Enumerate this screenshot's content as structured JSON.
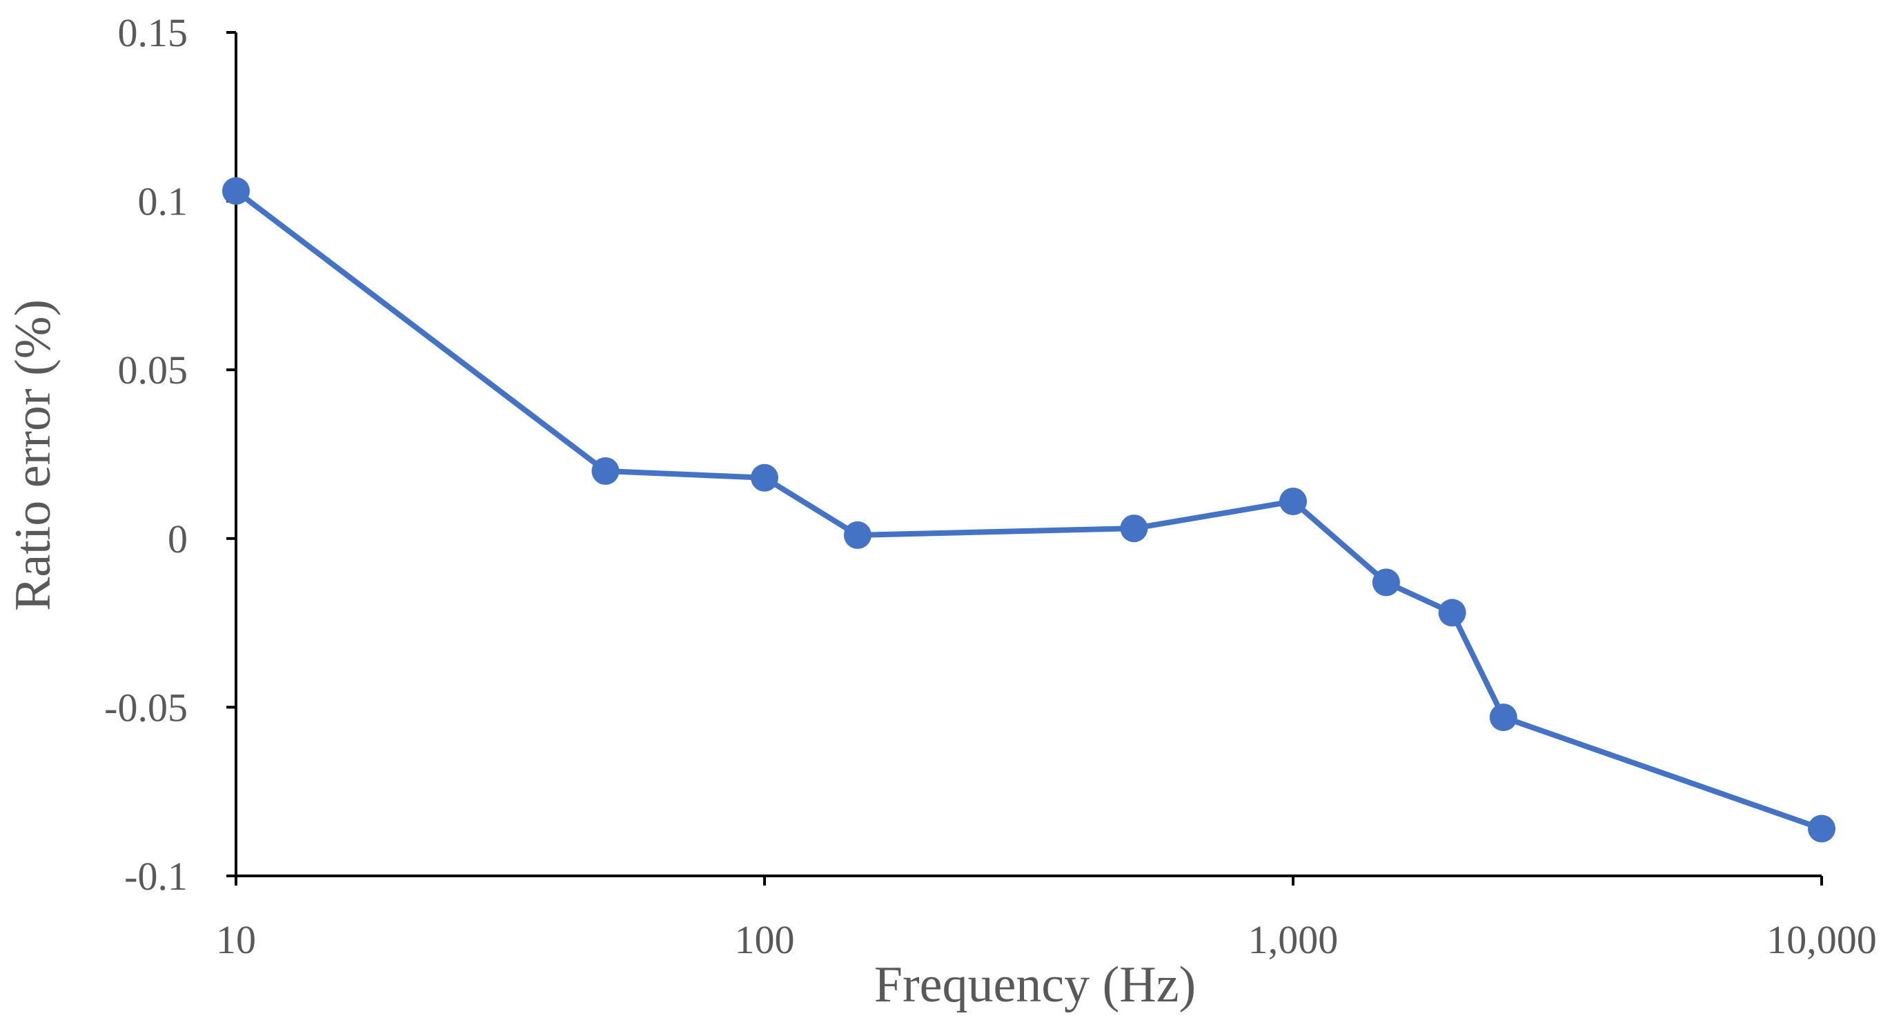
{
  "chart_data": {
    "type": "line",
    "title": "",
    "xlabel": "Frequency (Hz)",
    "ylabel": "Ratio error (%)",
    "xscale": "log",
    "xlim": [
      10,
      10000
    ],
    "ylim": [
      -0.1,
      0.15
    ],
    "xticks": [
      10,
      100,
      1000,
      10000
    ],
    "xtick_labels": [
      "10",
      "100",
      "1,000",
      "10,000"
    ],
    "yticks": [
      0.15,
      0.1,
      0.05,
      0,
      -0.05,
      -0.1
    ],
    "ytick_labels": [
      "0.15",
      "0.1",
      "0.05",
      "0",
      "-0.05",
      "-0.1"
    ],
    "grid": false,
    "legend": "none",
    "color": "#4472C4",
    "series": [
      {
        "x": [
          10,
          50,
          100,
          150,
          500,
          1000,
          1500,
          2000,
          2500,
          10000
        ],
        "y": [
          0.103,
          0.02,
          0.018,
          0.001,
          0.003,
          0.011,
          -0.013,
          -0.022,
          -0.053,
          -0.086
        ]
      }
    ]
  }
}
